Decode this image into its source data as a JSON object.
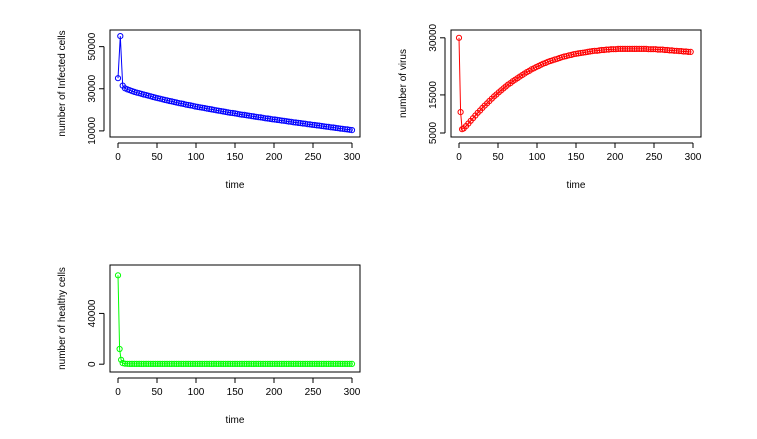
{
  "chart_data": [
    {
      "type": "scatter",
      "xlabel": "time",
      "ylabel": "number of Infected cells",
      "xlim": [
        0,
        300
      ],
      "ylim": [
        9000,
        56000
      ],
      "xticks": [
        0,
        50,
        100,
        150,
        200,
        250,
        300
      ],
      "yticks": [
        10000,
        30000,
        50000
      ],
      "color": "#0000ff",
      "lines": true,
      "x": [
        0,
        3,
        6,
        9,
        12,
        15,
        18,
        21,
        24,
        27,
        30,
        33,
        36,
        39,
        42,
        45,
        48,
        51,
        54,
        57,
        60,
        63,
        66,
        69,
        72,
        75,
        78,
        81,
        84,
        87,
        90,
        93,
        96,
        99,
        102,
        105,
        108,
        111,
        114,
        117,
        120,
        123,
        126,
        129,
        132,
        135,
        138,
        141,
        144,
        147,
        150,
        153,
        156,
        159,
        162,
        165,
        168,
        171,
        174,
        177,
        180,
        183,
        186,
        189,
        192,
        195,
        198,
        201,
        204,
        207,
        210,
        213,
        216,
        219,
        222,
        225,
        228,
        231,
        234,
        237,
        240,
        243,
        246,
        249,
        252,
        255,
        258,
        261,
        264,
        267,
        270,
        273,
        276,
        279,
        282,
        285,
        288,
        291,
        294,
        297,
        300
      ],
      "y": [
        35000,
        55000,
        31500,
        30200,
        29700,
        29300,
        28900,
        28500,
        28200,
        27900,
        27600,
        27300,
        27000,
        26700,
        26400,
        26100,
        25800,
        25500,
        25300,
        25000,
        24700,
        24500,
        24200,
        24000,
        23700,
        23500,
        23200,
        23000,
        22800,
        22500,
        22300,
        22100,
        21900,
        21600,
        21400,
        21200,
        21000,
        20800,
        20600,
        20400,
        20200,
        20000,
        19800,
        19600,
        19400,
        19200,
        19000,
        18800,
        18600,
        18500,
        18300,
        18100,
        17900,
        17700,
        17600,
        17400,
        17200,
        17000,
        16900,
        16700,
        16500,
        16400,
        16200,
        16000,
        15900,
        15700,
        15500,
        15400,
        15200,
        15100,
        14900,
        14800,
        14600,
        14400,
        14300,
        14100,
        14000,
        13800,
        13700,
        13500,
        13400,
        13200,
        13100,
        12900,
        12800,
        12600,
        12500,
        12300,
        12200,
        12000,
        11900,
        11700,
        11600,
        11400,
        11300,
        11100,
        11000,
        10800,
        10700,
        10500,
        10400
      ]
    },
    {
      "type": "scatter",
      "xlabel": "time",
      "ylabel": "number of virus",
      "xlim": [
        0,
        300
      ],
      "ylim": [
        5000,
        31000
      ],
      "xticks": [
        0,
        50,
        100,
        150,
        200,
        250,
        300
      ],
      "yticks": [
        5000,
        15000,
        30000
      ],
      "color": "#ff0000",
      "lines": true,
      "x": [
        0,
        2,
        4,
        6,
        9,
        12,
        15,
        18,
        21,
        24,
        27,
        30,
        33,
        36,
        39,
        42,
        45,
        48,
        51,
        54,
        57,
        60,
        63,
        66,
        69,
        72,
        75,
        78,
        81,
        84,
        87,
        90,
        93,
        96,
        99,
        102,
        105,
        108,
        111,
        114,
        117,
        120,
        123,
        126,
        129,
        132,
        135,
        138,
        141,
        144,
        147,
        150,
        153,
        156,
        159,
        162,
        165,
        168,
        171,
        174,
        177,
        180,
        183,
        186,
        189,
        192,
        195,
        198,
        201,
        204,
        207,
        210,
        213,
        216,
        219,
        222,
        225,
        228,
        231,
        234,
        237,
        240,
        243,
        246,
        249,
        252,
        255,
        258,
        261,
        264,
        267,
        270,
        273,
        276,
        279,
        282,
        285,
        288,
        291,
        294,
        297
      ],
      "y": [
        30000,
        10500,
        6000,
        6200,
        6800,
        7500,
        8200,
        8900,
        9600,
        10300,
        10900,
        11600,
        12200,
        12800,
        13400,
        14000,
        14600,
        15100,
        15700,
        16200,
        16700,
        17200,
        17700,
        18100,
        18600,
        19000,
        19400,
        19800,
        20200,
        20600,
        21000,
        21300,
        21700,
        22000,
        22300,
        22600,
        22900,
        23200,
        23400,
        23700,
        23900,
        24100,
        24300,
        24500,
        24700,
        24900,
        25100,
        25200,
        25400,
        25500,
        25700,
        25800,
        25900,
        26000,
        26100,
        26200,
        26300,
        26400,
        26500,
        26600,
        26600,
        26700,
        26800,
        26800,
        26900,
        26900,
        27000,
        27000,
        27000,
        27100,
        27100,
        27100,
        27100,
        27100,
        27100,
        27100,
        27100,
        27100,
        27100,
        27100,
        27100,
        27100,
        27000,
        27000,
        27000,
        27000,
        26900,
        26900,
        26900,
        26800,
        26800,
        26700,
        26700,
        26600,
        26600,
        26500,
        26500,
        26400,
        26400,
        26300,
        26300
      ]
    },
    {
      "type": "scatter",
      "xlabel": "time",
      "ylabel": "number of healthy cells",
      "xlim": [
        0,
        300
      ],
      "ylim": [
        -3000,
        75000
      ],
      "xticks": [
        0,
        50,
        100,
        150,
        200,
        250,
        300
      ],
      "yticks": [
        0,
        40000
      ],
      "color": "#00ff00",
      "lines": true,
      "x": [
        0,
        2,
        4,
        6,
        9,
        12,
        15,
        18,
        21,
        24,
        27,
        30,
        33,
        36,
        39,
        42,
        45,
        48,
        51,
        54,
        57,
        60,
        63,
        66,
        69,
        72,
        75,
        78,
        81,
        84,
        87,
        90,
        93,
        96,
        99,
        102,
        105,
        108,
        111,
        114,
        117,
        120,
        123,
        126,
        129,
        132,
        135,
        138,
        141,
        144,
        147,
        150,
        153,
        156,
        159,
        162,
        165,
        168,
        171,
        174,
        177,
        180,
        183,
        186,
        189,
        192,
        195,
        198,
        201,
        204,
        207,
        210,
        213,
        216,
        219,
        222,
        225,
        228,
        231,
        234,
        237,
        240,
        243,
        246,
        249,
        252,
        255,
        258,
        261,
        264,
        267,
        270,
        273,
        276,
        279,
        282,
        285,
        288,
        291,
        294,
        297,
        300
      ],
      "y": [
        70000,
        12000,
        3500,
        900,
        400,
        300,
        250,
        200,
        200,
        200,
        200,
        200,
        200,
        200,
        200,
        200,
        200,
        200,
        200,
        200,
        200,
        200,
        200,
        200,
        200,
        200,
        200,
        200,
        200,
        200,
        200,
        200,
        200,
        200,
        200,
        200,
        200,
        200,
        200,
        200,
        200,
        200,
        200,
        200,
        200,
        200,
        200,
        200,
        200,
        200,
        200,
        200,
        200,
        200,
        200,
        200,
        200,
        200,
        200,
        200,
        200,
        200,
        200,
        200,
        200,
        200,
        200,
        200,
        200,
        200,
        200,
        200,
        200,
        200,
        200,
        200,
        200,
        200,
        200,
        200,
        200,
        200,
        200,
        200,
        200,
        200,
        200,
        200,
        200,
        200,
        200,
        200,
        200,
        200,
        200,
        200,
        200,
        200,
        200,
        200,
        200,
        200
      ]
    }
  ]
}
